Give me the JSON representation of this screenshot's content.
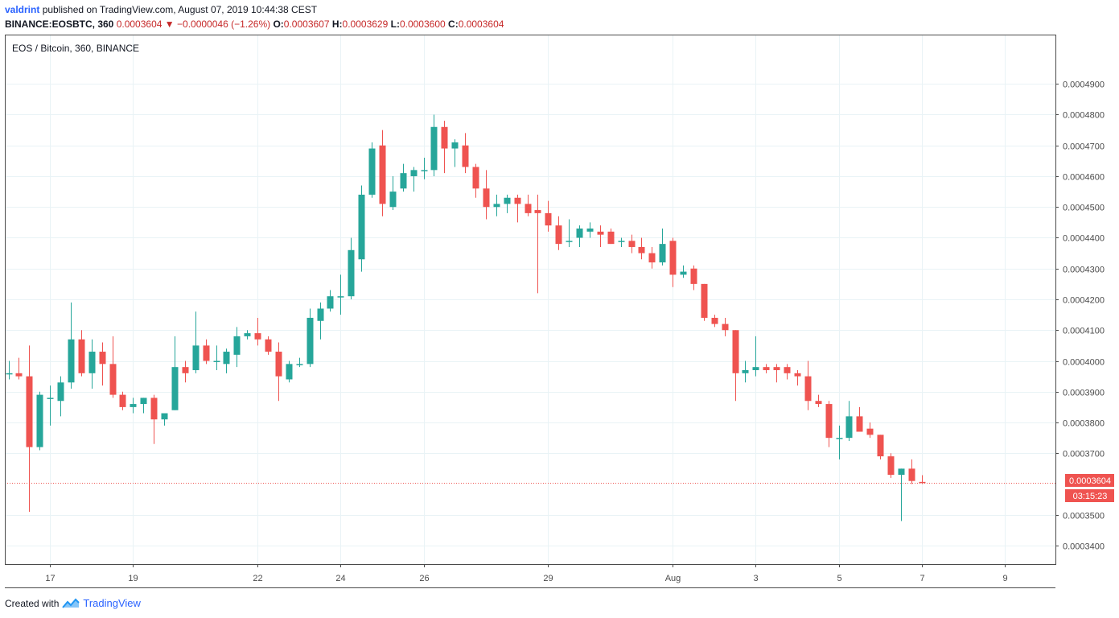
{
  "header": {
    "author": "valdrint",
    "published_text": "published on TradingView.com, August 07, 2019 10:44:38 CEST"
  },
  "symbol_bar": {
    "symbol": "BINANCE:EOSBTC, 360",
    "price": "0.0003604",
    "arrow": "▼",
    "change": "−0.0000046 (−1.26%)",
    "open_label": "O:",
    "open": "0.0003607",
    "high_label": "H:",
    "high": "0.0003629",
    "low_label": "L:",
    "low": "0.0003600",
    "close_label": "C:",
    "close": "0.0003604"
  },
  "footer": {
    "created_with": "Created with",
    "brand": "TradingView",
    "logo_icon": "tradingview-logo-icon"
  },
  "colors": {
    "up": "#26a69a",
    "down": "#ef5350",
    "grid": "#e9f3f6",
    "axis_text": "#4a4a4a",
    "price_line": "#ef5350"
  },
  "chart_data": {
    "type": "candlestick",
    "title": "EOS / Bitcoin, 360, BINANCE",
    "y_range": [
      0.000334,
      0.000506
    ],
    "y_ticks": [
      "0.0004900",
      "0.0004800",
      "0.0004700",
      "0.0004600",
      "0.0004500",
      "0.0004400",
      "0.0004300",
      "0.0004200",
      "0.0004100",
      "0.0004000",
      "0.0003900",
      "0.0003800",
      "0.0003700",
      "0.0003500",
      "0.0003400"
    ],
    "x_ticks": [
      {
        "label": "17",
        "index": 4
      },
      {
        "label": "19",
        "index": 12
      },
      {
        "label": "22",
        "index": 24
      },
      {
        "label": "24",
        "index": 32
      },
      {
        "label": "26",
        "index": 40
      },
      {
        "label": "29",
        "index": 52
      },
      {
        "label": "Aug",
        "index": 64
      },
      {
        "label": "3",
        "index": 72
      },
      {
        "label": "5",
        "index": 80
      },
      {
        "label": "7",
        "index": 88
      },
      {
        "label": "9",
        "index": 96
      }
    ],
    "last_price": 0.0003604,
    "last_price_label": "0.0003604",
    "countdown": "03:15:23",
    "candles": [
      {
        "o": 0.000396,
        "h": 0.0004,
        "l": 0.000394,
        "c": 0.000396
      },
      {
        "o": 0.000396,
        "h": 0.000401,
        "l": 0.000394,
        "c": 0.000395
      },
      {
        "o": 0.000395,
        "h": 0.000405,
        "l": 0.000351,
        "c": 0.000372
      },
      {
        "o": 0.000372,
        "h": 0.00039,
        "l": 0.000371,
        "c": 0.000389
      },
      {
        "o": 0.000388,
        "h": 0.000392,
        "l": 0.000379,
        "c": 0.000388
      },
      {
        "o": 0.000387,
        "h": 0.000395,
        "l": 0.000382,
        "c": 0.000393
      },
      {
        "o": 0.000393,
        "h": 0.000419,
        "l": 0.000391,
        "c": 0.000407
      },
      {
        "o": 0.000407,
        "h": 0.00041,
        "l": 0.000395,
        "c": 0.000396
      },
      {
        "o": 0.000396,
        "h": 0.000407,
        "l": 0.000391,
        "c": 0.000403
      },
      {
        "o": 0.000403,
        "h": 0.000406,
        "l": 0.000392,
        "c": 0.000399
      },
      {
        "o": 0.000399,
        "h": 0.000408,
        "l": 0.000388,
        "c": 0.000389
      },
      {
        "o": 0.000389,
        "h": 0.00039,
        "l": 0.000384,
        "c": 0.000385
      },
      {
        "o": 0.000385,
        "h": 0.000388,
        "l": 0.000383,
        "c": 0.000386
      },
      {
        "o": 0.000386,
        "h": 0.000388,
        "l": 0.000383,
        "c": 0.000388
      },
      {
        "o": 0.000388,
        "h": 0.000389,
        "l": 0.000373,
        "c": 0.000381
      },
      {
        "o": 0.000381,
        "h": 0.000382,
        "l": 0.000379,
        "c": 0.000383
      },
      {
        "o": 0.000384,
        "h": 0.000408,
        "l": 0.000384,
        "c": 0.000398
      },
      {
        "o": 0.000398,
        "h": 0.0004,
        "l": 0.000393,
        "c": 0.000396
      },
      {
        "o": 0.000397,
        "h": 0.000416,
        "l": 0.000396,
        "c": 0.000405
      },
      {
        "o": 0.000405,
        "h": 0.000407,
        "l": 0.000399,
        "c": 0.0004
      },
      {
        "o": 0.0004,
        "h": 0.000405,
        "l": 0.000397,
        "c": 0.0004
      },
      {
        "o": 0.000399,
        "h": 0.000404,
        "l": 0.000396,
        "c": 0.000403
      },
      {
        "o": 0.000402,
        "h": 0.000411,
        "l": 0.000398,
        "c": 0.000408
      },
      {
        "o": 0.000408,
        "h": 0.00041,
        "l": 0.000407,
        "c": 0.000409
      },
      {
        "o": 0.000409,
        "h": 0.000414,
        "l": 0.000405,
        "c": 0.000407
      },
      {
        "o": 0.000407,
        "h": 0.000408,
        "l": 0.000402,
        "c": 0.000403
      },
      {
        "o": 0.000403,
        "h": 0.000406,
        "l": 0.000387,
        "c": 0.000395
      },
      {
        "o": 0.000394,
        "h": 0.0004,
        "l": 0.000393,
        "c": 0.000399
      },
      {
        "o": 0.000399,
        "h": 0.000401,
        "l": 0.000398,
        "c": 0.000399
      },
      {
        "o": 0.000399,
        "h": 0.000417,
        "l": 0.000398,
        "c": 0.000414
      },
      {
        "o": 0.000413,
        "h": 0.000419,
        "l": 0.000407,
        "c": 0.000417
      },
      {
        "o": 0.000417,
        "h": 0.000423,
        "l": 0.000416,
        "c": 0.000421
      },
      {
        "o": 0.000421,
        "h": 0.000428,
        "l": 0.000415,
        "c": 0.000421
      },
      {
        "o": 0.000421,
        "h": 0.00044,
        "l": 0.00042,
        "c": 0.000436
      },
      {
        "o": 0.000433,
        "h": 0.000457,
        "l": 0.000429,
        "c": 0.000454
      },
      {
        "o": 0.000454,
        "h": 0.000471,
        "l": 0.000453,
        "c": 0.000469
      },
      {
        "o": 0.00047,
        "h": 0.000475,
        "l": 0.000447,
        "c": 0.000451
      },
      {
        "o": 0.00045,
        "h": 0.00046,
        "l": 0.000449,
        "c": 0.000455
      },
      {
        "o": 0.000456,
        "h": 0.000464,
        "l": 0.000455,
        "c": 0.000461
      },
      {
        "o": 0.00046,
        "h": 0.000463,
        "l": 0.000455,
        "c": 0.000462
      },
      {
        "o": 0.000462,
        "h": 0.000466,
        "l": 0.000459,
        "c": 0.000462
      },
      {
        "o": 0.000462,
        "h": 0.00048,
        "l": 0.00046,
        "c": 0.000476
      },
      {
        "o": 0.000476,
        "h": 0.000478,
        "l": 0.000461,
        "c": 0.000469
      },
      {
        "o": 0.000469,
        "h": 0.000472,
        "l": 0.000463,
        "c": 0.000471
      },
      {
        "o": 0.00047,
        "h": 0.000474,
        "l": 0.000461,
        "c": 0.000463
      },
      {
        "o": 0.000463,
        "h": 0.000464,
        "l": 0.000453,
        "c": 0.000456
      },
      {
        "o": 0.000456,
        "h": 0.000462,
        "l": 0.000446,
        "c": 0.00045
      },
      {
        "o": 0.00045,
        "h": 0.000454,
        "l": 0.000447,
        "c": 0.000451
      },
      {
        "o": 0.000451,
        "h": 0.000454,
        "l": 0.000448,
        "c": 0.000453
      },
      {
        "o": 0.000453,
        "h": 0.000454,
        "l": 0.000445,
        "c": 0.000451
      },
      {
        "o": 0.000451,
        "h": 0.000454,
        "l": 0.000447,
        "c": 0.000448
      },
      {
        "o": 0.000449,
        "h": 0.000454,
        "l": 0.000422,
        "c": 0.000448
      },
      {
        "o": 0.000448,
        "h": 0.000452,
        "l": 0.000442,
        "c": 0.000444
      },
      {
        "o": 0.000444,
        "h": 0.000447,
        "l": 0.000436,
        "c": 0.000438
      },
      {
        "o": 0.000439,
        "h": 0.000446,
        "l": 0.000437,
        "c": 0.000439
      },
      {
        "o": 0.00044,
        "h": 0.000444,
        "l": 0.000437,
        "c": 0.000443
      },
      {
        "o": 0.000442,
        "h": 0.000445,
        "l": 0.00044,
        "c": 0.000443
      },
      {
        "o": 0.000442,
        "h": 0.000444,
        "l": 0.000437,
        "c": 0.000441
      },
      {
        "o": 0.000442,
        "h": 0.000443,
        "l": 0.000438,
        "c": 0.000438
      },
      {
        "o": 0.000439,
        "h": 0.00044,
        "l": 0.000437,
        "c": 0.000439
      },
      {
        "o": 0.000439,
        "h": 0.000441,
        "l": 0.000435,
        "c": 0.000437
      },
      {
        "o": 0.000437,
        "h": 0.00044,
        "l": 0.000433,
        "c": 0.000435
      },
      {
        "o": 0.000435,
        "h": 0.000437,
        "l": 0.00043,
        "c": 0.000432
      },
      {
        "o": 0.000432,
        "h": 0.000443,
        "l": 0.000431,
        "c": 0.000438
      },
      {
        "o": 0.000439,
        "h": 0.00044,
        "l": 0.000424,
        "c": 0.000428
      },
      {
        "o": 0.000428,
        "h": 0.000431,
        "l": 0.000427,
        "c": 0.000429
      },
      {
        "o": 0.00043,
        "h": 0.000431,
        "l": 0.000423,
        "c": 0.000425
      },
      {
        "o": 0.000425,
        "h": 0.000425,
        "l": 0.000413,
        "c": 0.000414
      },
      {
        "o": 0.000414,
        "h": 0.000415,
        "l": 0.000411,
        "c": 0.000412
      },
      {
        "o": 0.000412,
        "h": 0.000414,
        "l": 0.000408,
        "c": 0.00041
      },
      {
        "o": 0.00041,
        "h": 0.00041,
        "l": 0.000387,
        "c": 0.000396
      },
      {
        "o": 0.000396,
        "h": 0.0004,
        "l": 0.000393,
        "c": 0.000397
      },
      {
        "o": 0.000397,
        "h": 0.000408,
        "l": 0.000395,
        "c": 0.000398
      },
      {
        "o": 0.000398,
        "h": 0.000399,
        "l": 0.000396,
        "c": 0.000397
      },
      {
        "o": 0.000398,
        "h": 0.000399,
        "l": 0.000393,
        "c": 0.000397
      },
      {
        "o": 0.000398,
        "h": 0.000399,
        "l": 0.000394,
        "c": 0.000396
      },
      {
        "o": 0.000396,
        "h": 0.000397,
        "l": 0.000392,
        "c": 0.000395
      },
      {
        "o": 0.000395,
        "h": 0.0004,
        "l": 0.000384,
        "c": 0.000387
      },
      {
        "o": 0.000387,
        "h": 0.000389,
        "l": 0.000385,
        "c": 0.000386
      },
      {
        "o": 0.000386,
        "h": 0.000387,
        "l": 0.000372,
        "c": 0.000375
      },
      {
        "o": 0.000375,
        "h": 0.000379,
        "l": 0.000368,
        "c": 0.000375
      },
      {
        "o": 0.000375,
        "h": 0.000387,
        "l": 0.000374,
        "c": 0.000382
      },
      {
        "o": 0.000382,
        "h": 0.000385,
        "l": 0.000377,
        "c": 0.000377
      },
      {
        "o": 0.000378,
        "h": 0.00038,
        "l": 0.000375,
        "c": 0.000376
      },
      {
        "o": 0.000376,
        "h": 0.000376,
        "l": 0.000368,
        "c": 0.000369
      },
      {
        "o": 0.000369,
        "h": 0.00037,
        "l": 0.000362,
        "c": 0.000363
      },
      {
        "o": 0.000363,
        "h": 0.000365,
        "l": 0.000348,
        "c": 0.000365
      },
      {
        "o": 0.000365,
        "h": 0.000368,
        "l": 0.00036,
        "c": 0.000361
      },
      {
        "o": 0.0003607,
        "h": 0.0003629,
        "l": 0.00036,
        "c": 0.0003604
      }
    ]
  }
}
